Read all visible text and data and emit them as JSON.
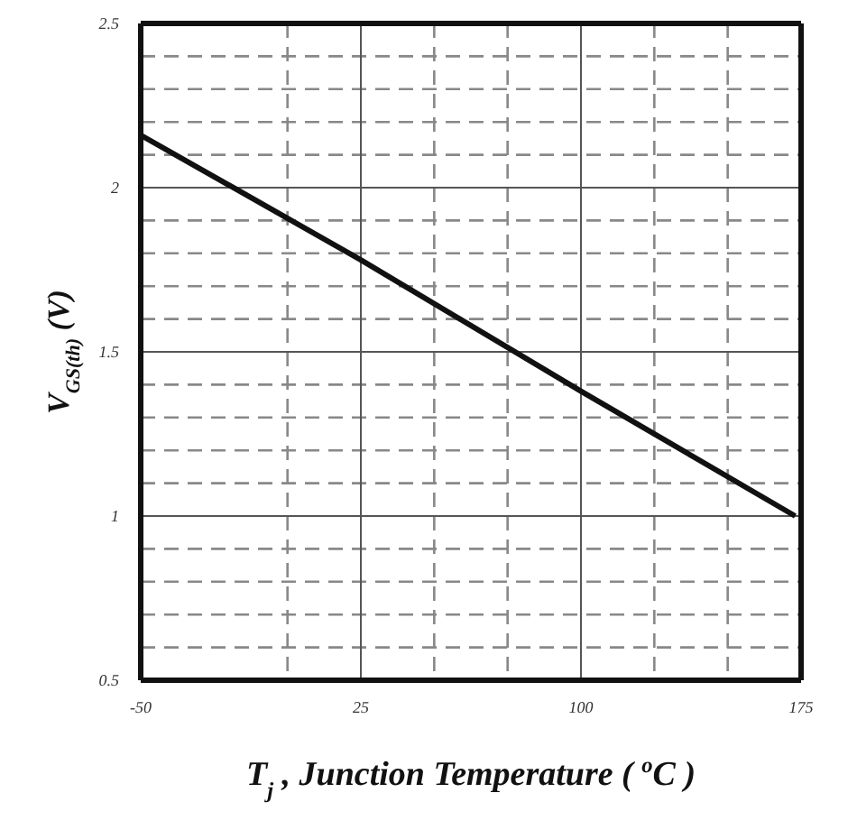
{
  "chart_data": {
    "type": "line",
    "xlabel": "T$_{j}$ , Junction Temperature ( $^{o}$C )",
    "ylabel": "V$_{GS(th)}$ (V)",
    "x": [
      -50,
      25,
      100,
      173
    ],
    "series": [
      {
        "color": "#111111",
        "values": [
          2.16,
          1.78,
          1.38,
          1.0
        ]
      }
    ],
    "xlim": [
      -50,
      175
    ],
    "xticks": [
      -50,
      {
        "value": 0,
        "label": null
      },
      {
        "value": 50,
        "label": null
      },
      25,
      {
        "value": 75,
        "label": null
      },
      100,
      {
        "value": 125,
        "label": null
      },
      {
        "value": 150,
        "label": null
      },
      175
    ],
    "ylim": [
      0.5,
      2.5
    ],
    "yticks": [
      0.5,
      {
        "value": 0.6,
        "label": null
      },
      {
        "value": 0.7,
        "label": null
      },
      {
        "value": 0.8,
        "label": null
      },
      {
        "value": 0.9,
        "label": null
      },
      1,
      {
        "value": 1.1,
        "label": null
      },
      {
        "value": 1.2,
        "label": null
      },
      {
        "value": 1.3,
        "label": null
      },
      {
        "value": 1.4,
        "label": null
      },
      1.5,
      {
        "value": 1.6,
        "label": null
      },
      {
        "value": 1.7,
        "label": null
      },
      {
        "value": 1.8,
        "label": null
      },
      {
        "value": 1.9,
        "label": null
      },
      2,
      {
        "value": 2.1,
        "label": null
      },
      {
        "value": 2.2,
        "label": null
      },
      {
        "value": 2.3,
        "label": null
      },
      {
        "value": 2.4,
        "label": null
      },
      2.5
    ],
    "grid": true,
    "marker": "none",
    "line_style": "solid"
  }
}
